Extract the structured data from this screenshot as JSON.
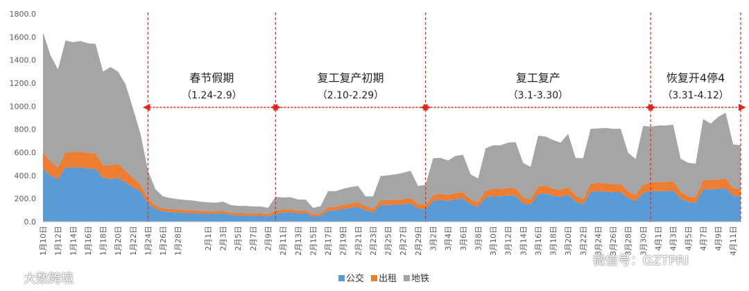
{
  "chart_data": {
    "type": "area",
    "stacked": true,
    "ylim": [
      0,
      1800
    ],
    "yticks": [
      "0.0",
      "200.0",
      "400.0",
      "600.0",
      "800.0",
      "1000.0",
      "1200.0",
      "1400.0",
      "1600.0",
      "1800.0"
    ],
    "x": [
      "1月10日",
      "1月11日",
      "1月12日",
      "1月13日",
      "1月14日",
      "1月15日",
      "1月16日",
      "1月17日",
      "1月18日",
      "1月19日",
      "1月20日",
      "1月21日",
      "1月22日",
      "1月23日",
      "1月24日",
      "1月25日",
      "1月26日",
      "1月27日",
      "1月28日",
      "1月29日",
      "1月30日",
      "1月31日",
      "2月1日",
      "2月2日",
      "2月3日",
      "2月4日",
      "2月5日",
      "2月6日",
      "2月7日",
      "2月8日",
      "2月9日",
      "2月10日",
      "2月11日",
      "2月12日",
      "2月13日",
      "2月14日",
      "2月15日",
      "2月16日",
      "2月17日",
      "2月18日",
      "2月19日",
      "2月20日",
      "2月21日",
      "2月22日",
      "2月23日",
      "2月24日",
      "2月25日",
      "2月26日",
      "2月27日",
      "2月28日",
      "2月29日",
      "3月1日",
      "3月2日",
      "3月3日",
      "3月4日",
      "3月5日",
      "3月6日",
      "3月7日",
      "3月8日",
      "3月9日",
      "3月10日",
      "3月11日",
      "3月12日",
      "3月13日",
      "3月14日",
      "3月15日",
      "3月16日",
      "3月17日",
      "3月18日",
      "3月19日",
      "3月20日",
      "3月21日",
      "3月22日",
      "3月23日",
      "3月24日",
      "3月25日",
      "3月26日",
      "3月27日",
      "3月28日",
      "3月29日",
      "3月30日",
      "3月31日",
      "4月1日",
      "4月2日",
      "4月3日",
      "4月4日",
      "4月5日",
      "4月6日",
      "4月7日",
      "4月8日",
      "4月9日",
      "4月10日",
      "4月11日",
      "4月12日"
    ],
    "xticklabels": [
      "1月10日",
      "1月12日",
      "1月14日",
      "1月16日",
      "1月18日",
      "1月20日",
      "1月22日",
      "1月24日",
      "1月26日",
      "1月28日",
      "2月1日",
      "2月3日",
      "2月5日",
      "2月7日",
      "2月9日",
      "2月11日",
      "2月13日",
      "2月15日",
      "2月17日",
      "2月19日",
      "2月21日",
      "2月23日",
      "2月25日",
      "2月27日",
      "2月29日",
      "3月2日",
      "3月4日",
      "3月6日",
      "3月8日",
      "3月10日",
      "3月12日",
      "3月14日",
      "3月16日",
      "3月18日",
      "3月20日",
      "3月22日",
      "3月24日",
      "3月26日",
      "3月28日",
      "3月30日",
      "4月1日",
      "4月3日",
      "4月5日",
      "4月7日",
      "4月9日",
      "4月11日"
    ],
    "series": [
      {
        "name": "公交",
        "color": "#5b9bd5",
        "values": [
          460,
          400,
          370,
          470,
          470,
          470,
          460,
          460,
          380,
          370,
          380,
          340,
          300,
          260,
          160,
          110,
          90,
          85,
          80,
          75,
          75,
          70,
          68,
          70,
          72,
          60,
          55,
          55,
          50,
          52,
          45,
          70,
          80,
          82,
          70,
          78,
          45,
          50,
          95,
          100,
          110,
          120,
          130,
          100,
          80,
          145,
          145,
          148,
          150,
          160,
          115,
          110,
          180,
          190,
          180,
          195,
          200,
          150,
          130,
          210,
          220,
          220,
          230,
          225,
          160,
          150,
          240,
          245,
          225,
          215,
          235,
          175,
          150,
          260,
          265,
          260,
          255,
          255,
          205,
          180,
          250,
          265,
          265,
          265,
          270,
          200,
          170,
          165,
          280,
          280,
          285,
          290,
          225,
          220
        ]
      },
      {
        "name": "出租",
        "color": "#ed7d31",
        "values": [
          140,
          120,
          100,
          130,
          135,
          135,
          135,
          130,
          110,
          120,
          120,
          100,
          80,
          60,
          40,
          30,
          25,
          25,
          25,
          25,
          24,
          23,
          22,
          22,
          22,
          20,
          20,
          20,
          20,
          20,
          20,
          25,
          25,
          25,
          22,
          22,
          20,
          20,
          30,
          30,
          35,
          35,
          40,
          35,
          30,
          40,
          42,
          42,
          44,
          46,
          40,
          35,
          50,
          52,
          50,
          55,
          55,
          45,
          40,
          60,
          62,
          62,
          65,
          64,
          50,
          45,
          65,
          68,
          62,
          60,
          66,
          52,
          45,
          70,
          72,
          72,
          70,
          70,
          58,
          52,
          70,
          78,
          78,
          78,
          80,
          60,
          50,
          48,
          80,
          80,
          82,
          84,
          65,
          62
        ]
      },
      {
        "name": "地铁",
        "color": "#a5a5a5",
        "values": [
          1040,
          920,
          850,
          970,
          950,
          960,
          950,
          950,
          810,
          850,
          800,
          750,
          600,
          440,
          240,
          140,
          105,
          95,
          90,
          88,
          85,
          80,
          78,
          72,
          80,
          65,
          62,
          62,
          62,
          60,
          55,
          120,
          105,
          105,
          100,
          92,
          55,
          65,
          140,
          135,
          140,
          145,
          140,
          85,
          110,
          210,
          215,
          220,
          230,
          235,
          155,
          175,
          320,
          310,
          300,
          320,
          325,
          215,
          205,
          365,
          380,
          380,
          390,
          400,
          300,
          280,
          440,
          425,
          420,
          410,
          460,
          325,
          355,
          475,
          470,
          480,
          480,
          480,
          335,
          310,
          510,
          480,
          490,
          490,
          490,
          285,
          290,
          290,
          530,
          490,
          540,
          570,
          380,
          380
        ]
      }
    ],
    "periods": [
      {
        "title": "春节假期",
        "range": "（1.24-2.9）"
      },
      {
        "title": "复工复产初期",
        "range": "（2.10-2.29）"
      },
      {
        "title": "复工复产",
        "range": "（3.1-3.30）"
      },
      {
        "title": "恢复开4停4",
        "range": "（3.31-4.12）"
      }
    ],
    "period_bounds": [
      "1月24日",
      "2月10日",
      "3月1日",
      "3月31日",
      "4月12日"
    ],
    "divider_color": "#e8241b",
    "legend_position": "bottom-center",
    "grid": false
  },
  "watermarks": {
    "left": "大数跨境",
    "right": "微信号：GZTPRI"
  }
}
